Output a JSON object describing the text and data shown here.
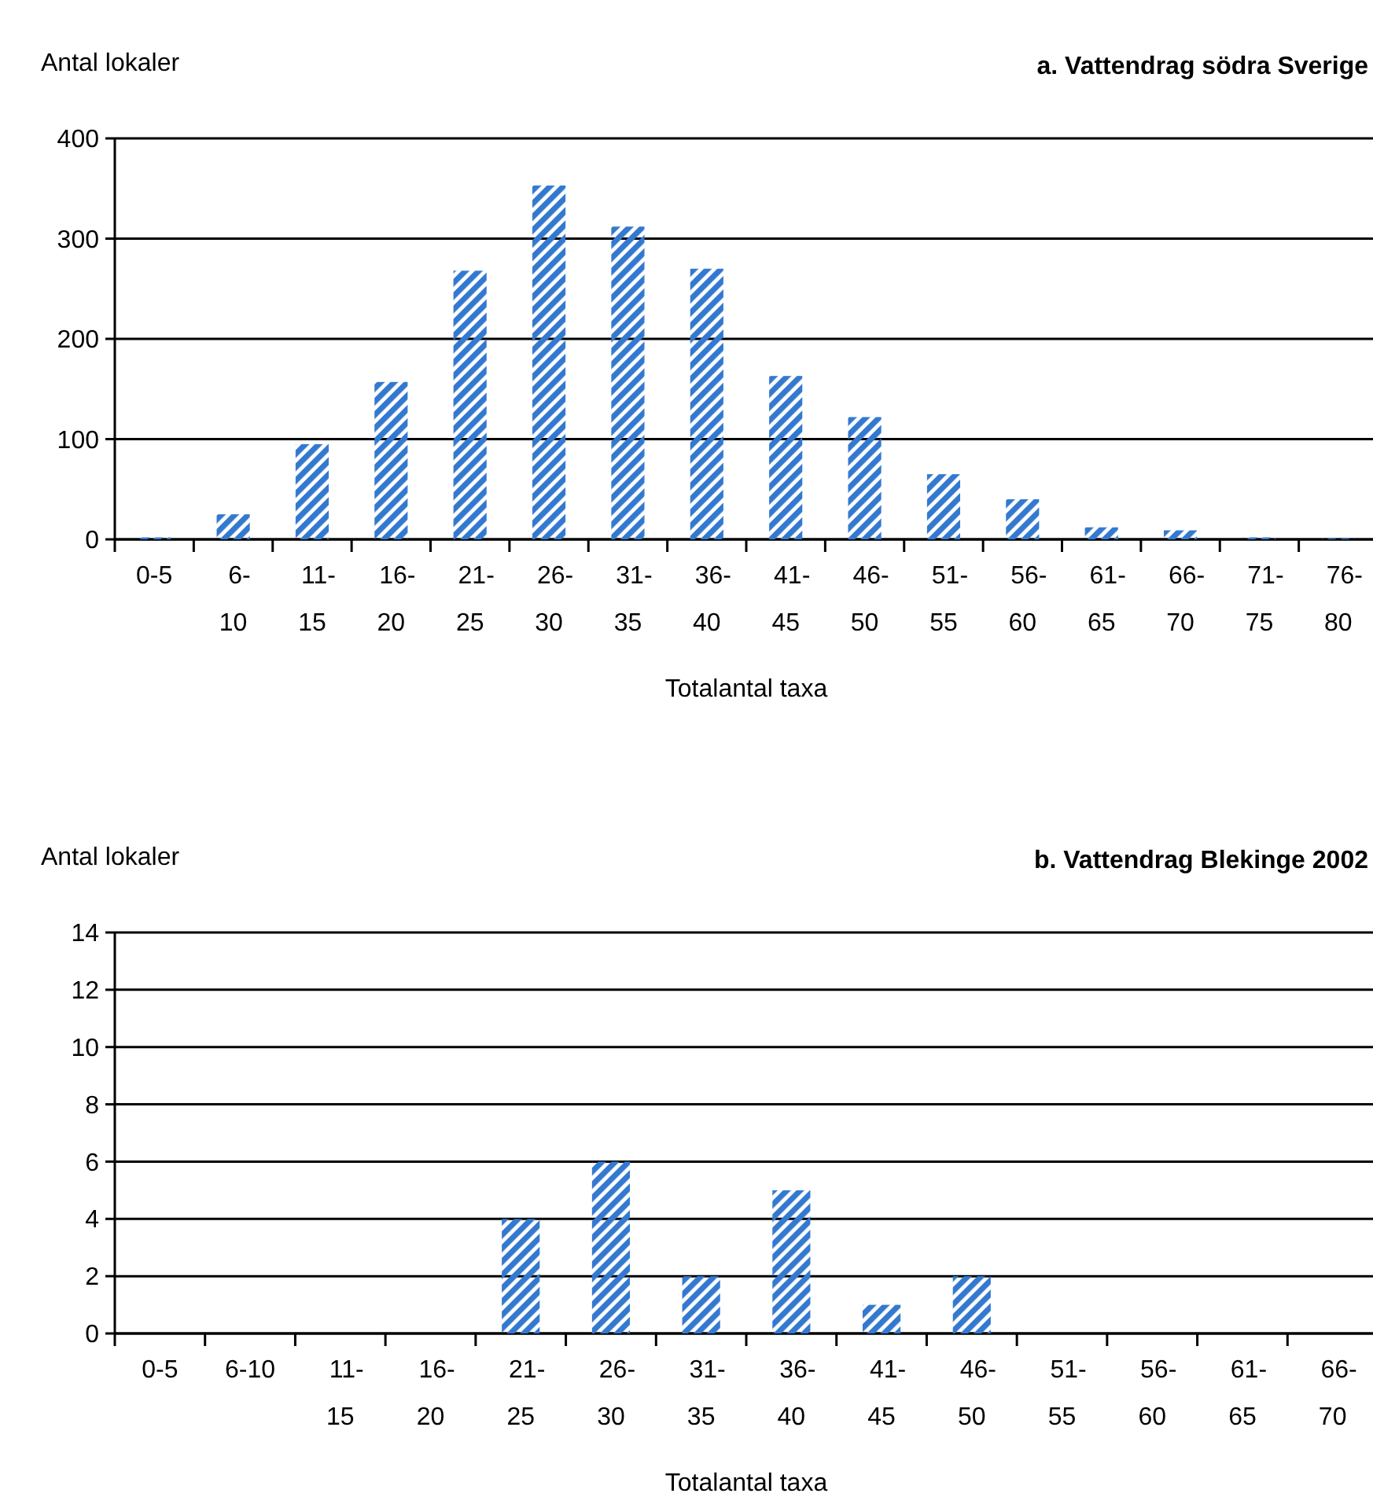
{
  "chart_data": [
    {
      "type": "bar",
      "title": "a. Vattendrag södra Sverige",
      "ylabel": "Antal lokaler",
      "xlabel": "Totalantal taxa",
      "categories": [
        "0-5",
        "6-10",
        "11-15",
        "16-20",
        "21-25",
        "26-30",
        "31-35",
        "36-40",
        "41-45",
        "46-50",
        "51-55",
        "56-60",
        "61-65",
        "66-70",
        "71-75",
        "76-80"
      ],
      "values": [
        2,
        25,
        95,
        157,
        268,
        353,
        312,
        270,
        163,
        122,
        65,
        40,
        12,
        9,
        2,
        1
      ],
      "color": "#3479d0",
      "ylim": [
        0,
        400
      ],
      "yticks": [
        0,
        100,
        200,
        300,
        400
      ],
      "grid": "y"
    },
    {
      "type": "bar",
      "title": "b. Vattendrag Blekinge 2002",
      "ylabel": "Antal lokaler",
      "xlabel": "Totalantal taxa",
      "categories": [
        "0-5",
        "6-10",
        "11-15",
        "16-20",
        "21-25",
        "26-30",
        "31-35",
        "36-40",
        "41-45",
        "46-50",
        "51-55",
        "56-60",
        "61-65",
        "66-70"
      ],
      "values": [
        0,
        0,
        0,
        0,
        4,
        6,
        2,
        5,
        1,
        2,
        0,
        0,
        0,
        0
      ],
      "color": "#3479d0",
      "ylim": [
        0,
        14
      ],
      "yticks": [
        0,
        2,
        4,
        6,
        8,
        10,
        12,
        14
      ],
      "grid": "y"
    }
  ]
}
